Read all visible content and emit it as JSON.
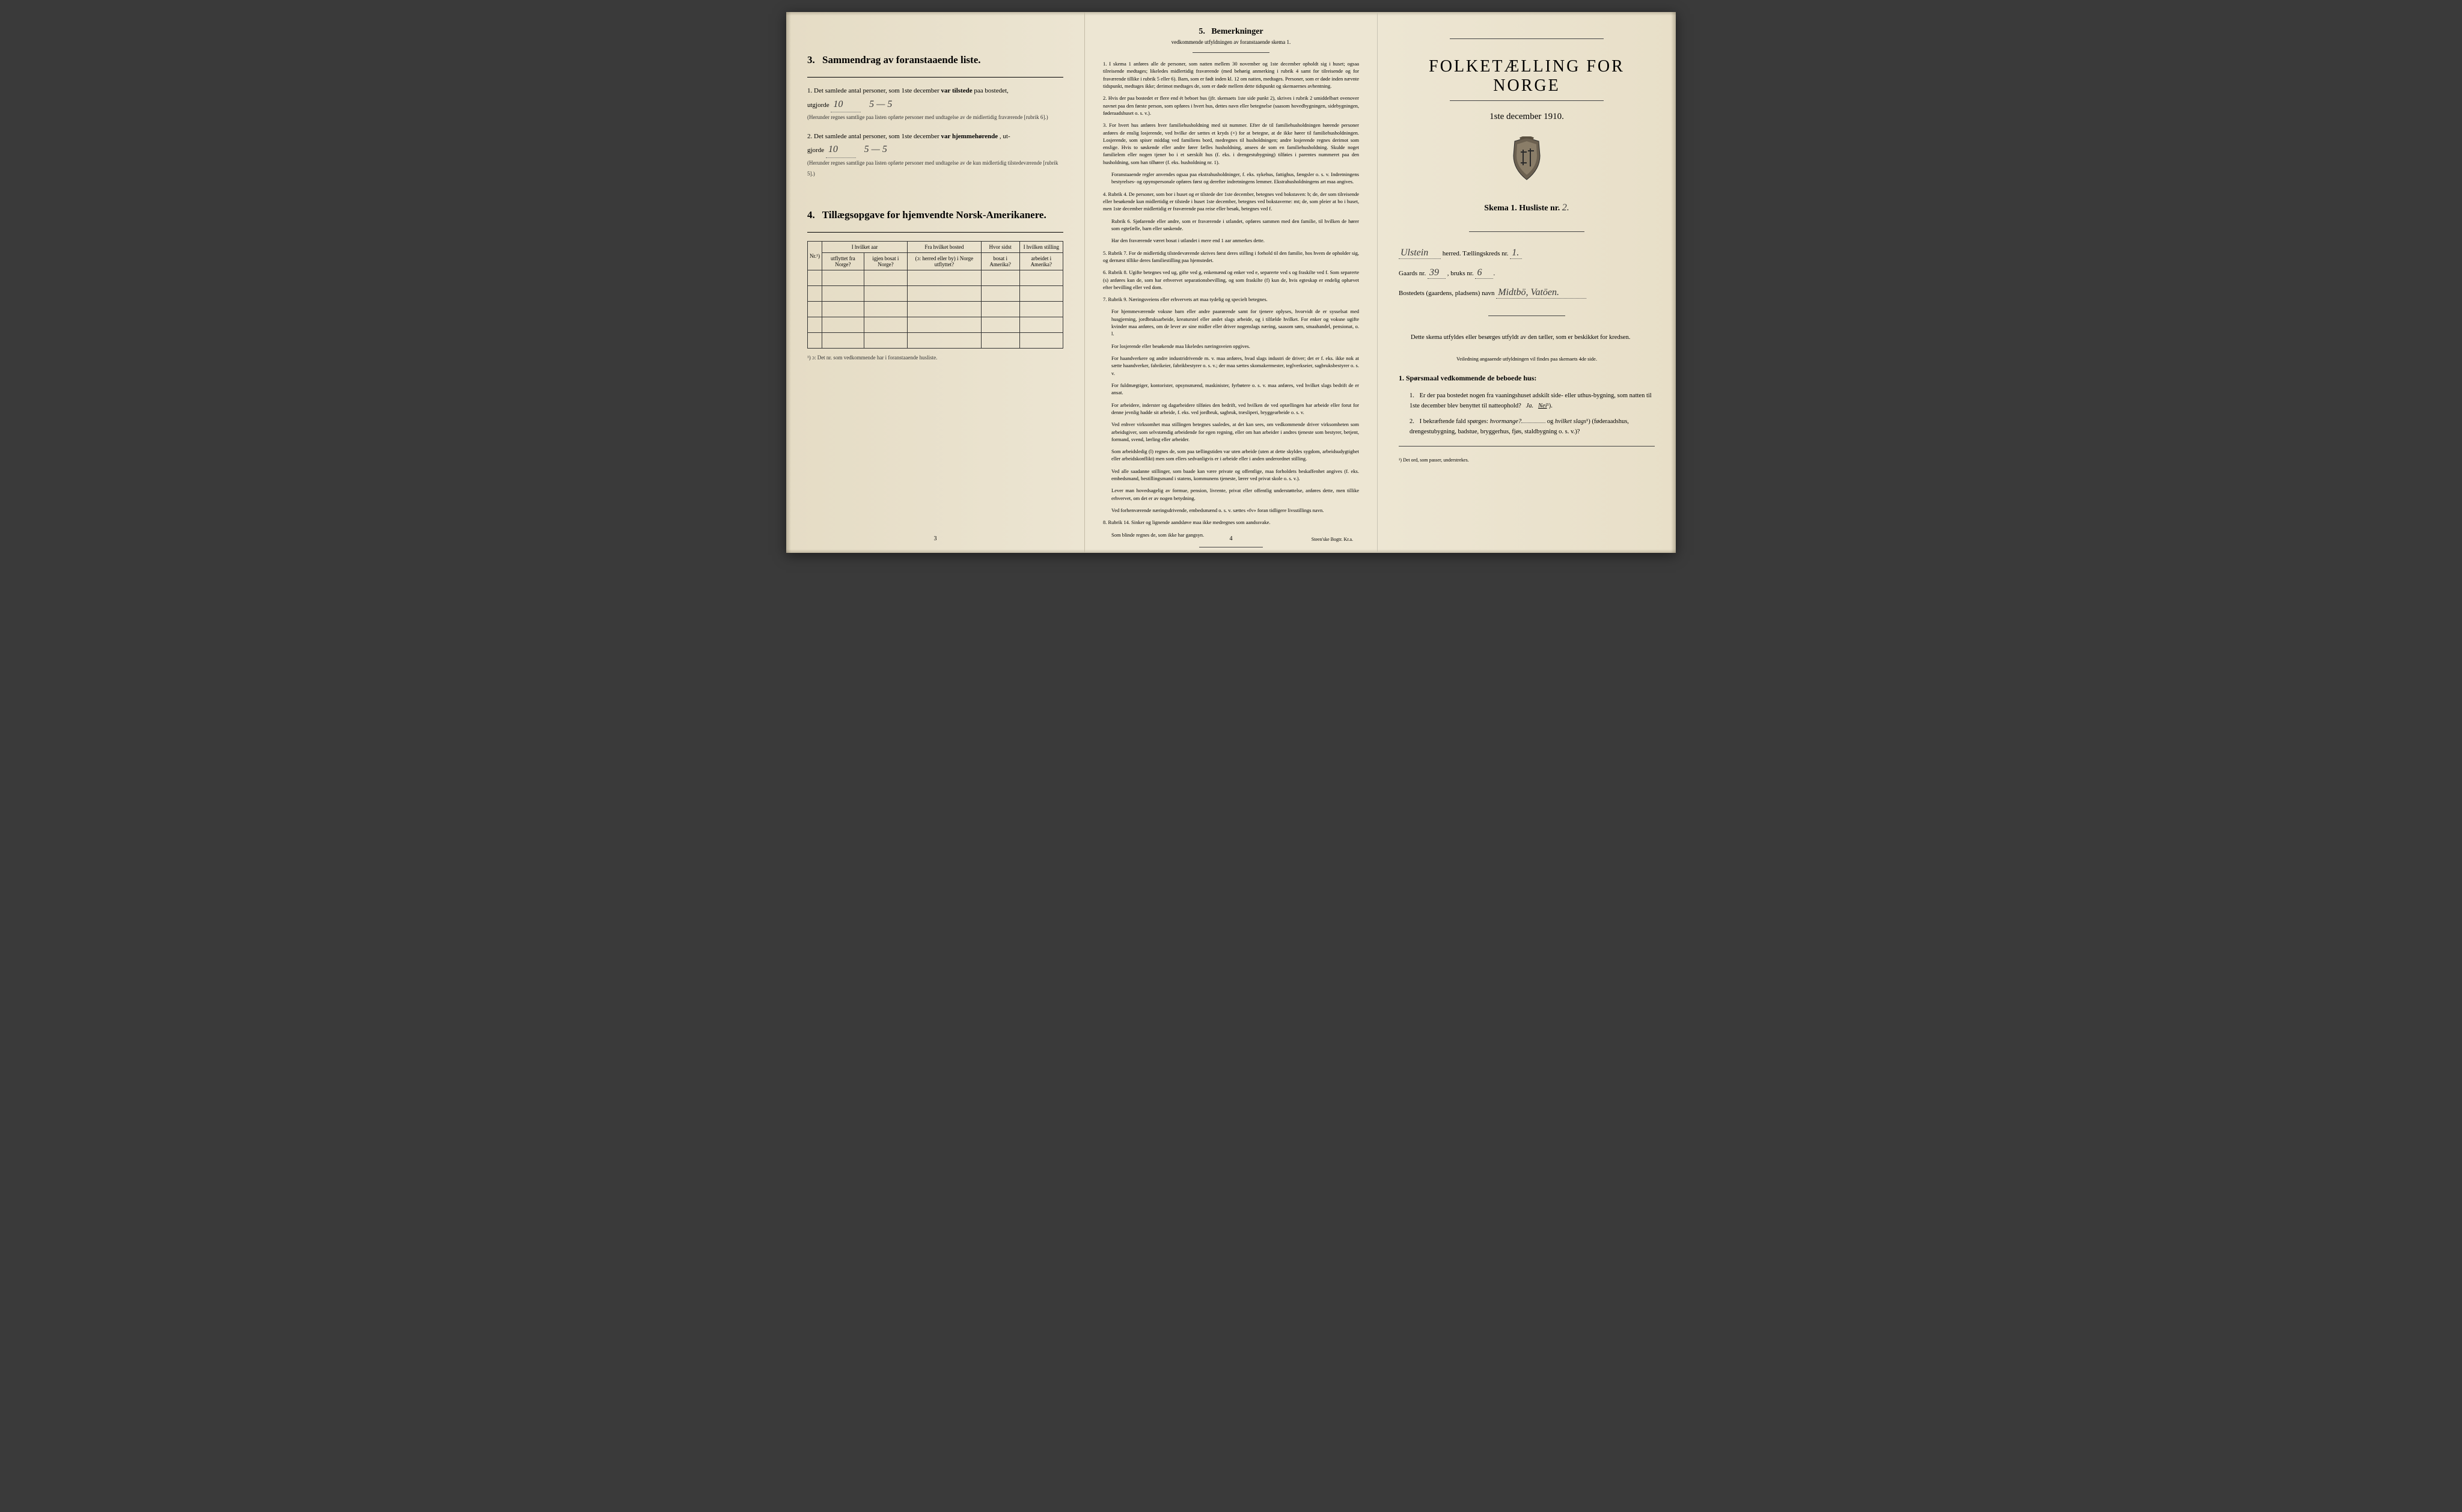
{
  "left": {
    "section3": {
      "number": "3.",
      "title": "Sammendrag av foranstaaende liste.",
      "item1_prefix": "1.  Det samlede antal personer, som 1ste december",
      "item1_bold": "var tilstede",
      "item1_suffix": "paa bostedet,",
      "utgjorde": "utgjorde",
      "value1": "10",
      "split1": "5 — 5",
      "note1": "(Herunder regnes samtlige paa listen opførte personer med undtagelse av de midlertidig fraværende [rubrik 6].)",
      "item2_prefix": "2.  Det samlede antal personer, som 1ste december",
      "item2_bold": "var hjemmehørende",
      "item2_suffix": ", ut-",
      "gjorde": "gjorde",
      "value2": "10",
      "split2": "5 — 5",
      "note2": "(Herunder regnes samtlige paa listen opførte personer med undtagelse av de kun midlertidig tilstedeværende [rubrik 5].)"
    },
    "section4": {
      "number": "4.",
      "title": "Tillægsopgave for hjemvendte Norsk-Amerikanere.",
      "cols": {
        "c1": "Nr.¹)",
        "c2a": "I hvilket aar",
        "c2b": "utflyttet fra Norge?",
        "c2c": "igjen bosat i Norge?",
        "c3a": "Fra hvilket bosted",
        "c3b": "(ɔ: herred eller by) i Norge utflyttet?",
        "c4a": "Hvor sidst",
        "c4b": "bosat i Amerika?",
        "c5a": "I hvilken stilling",
        "c5b": "arbeidet i Amerika?"
      },
      "footnote": "¹) ɔ: Det nr. som vedkommende har i foranstaaende husliste."
    },
    "pagenum": "3"
  },
  "middle": {
    "number": "5.",
    "title": "Bemerkninger",
    "subtitle": "vedkommende utfyldningen av foranstaaende skema 1.",
    "items": [
      "1.  I skema 1 anføres alle de personer, som natten mellem 30 november og 1ste december opholdt sig i huset; ogsaa tilreisende medtages; likeledes midlertidig fraværende (med behørig anmerking i rubrik 4 samt for tilreisende og for fraværende tillike i rubrik 5 eller 6). Barn, som er født inden kl. 12 om natten, medtages. Personer, som er døde inden nævnte tidspunkt, medtages ikke; derimot medtages de, som er døde mellem dette tidspunkt og skemaernes avhentning.",
      "2.  Hvis der paa bostedet er flere end ét beboet hus (jfr. skemaets 1ste side punkt 2), skrives i rubrik 2 umiddelbart ovenover navnet paa den første person, som opføres i hvert hus, dettes navn eller betegnelse (saasom hovedbygningen, sidebygningen, føderaadshuset o. s. v.).",
      "3.  For hvert hus anføres hver familiehusholdning med sit nummer. Efter de til familiehusholdningen hørende personer anføres de enslig losjerende, ved hvilke der sættes et kryds (×) for at betegne, at de ikke hører til familiehusholdningen. Losjerende, som spiser middag ved familiens bord, medregnes til husholdningen; andre losjerende regnes derimot som enslige. Hvis to søskende eller andre fører fælles husholdning, ansees de som en familiehusholdning. Skulde noget familielem eller nogen tjener bo i et særskilt hus (f. eks. i drengestubygning) tilføies i parentes nummeret paa den husholdning, som han tilhører (f. eks. husholdning nr. 1).",
      "Foranstaaende regler anvendes ogsaa paa ekstrahusholdninger, f. eks. sykehus, fattighus, fængsler o. s. v. Indretningens bestyrelses- og opynspersonale opføres først og derefter indretningens lemmer. Ekstrahusholdningens art maa angives.",
      "4.  Rubrik 4. De personer, som bor i huset og er tilstede der 1ste december, betegnes ved bokstaven: b; de, der som tilreisende eller besøkende kun midlertidig er tilstede i huset 1ste december, betegnes ved bokstaverne: mt; de, som pleier at bo i huset, men 1ste december midlertidig er fraværende paa reise eller besøk, betegnes ved f.",
      "Rubrik 6. Sjøfarende eller andre, som er fraværende i utlandet, opføres sammen med den familie, til hvilken de hører som egtefælle, barn eller søskende.",
      "Har den fraværende været bosat i utlandet i mere end 1 aar anmerkes dette.",
      "5.  Rubrik 7. For de midlertidig tilstedeværende skrives først deres stilling i forhold til den familie, hos hvem de opholder sig, og dernæst tillike deres familiestilling paa hjemstedet.",
      "6.  Rubrik 8. Ugifte betegnes ved ug, gifte ved g, enkemænd og enker ved e, separerte ved s og fraskilte ved f. Som separerte (s) anføres kun de, som har erhvervet separationsbevilling, og som fraskilte (f) kun de, hvis egteskap er endelig ophævet efter bevilling eller ved dom.",
      "7.  Rubrik 9. Næringsveiens eller erhvervets art maa tydelig og specielt betegnes.",
      "For hjemmeværende voksne barn eller andre paarørende samt for tjenere oplyses, hvorvidt de er sysselsat med husgjerning, jordbruksarbeide, kreaturstel eller andet slags arbeide, og i tilfælde hvilket. For enker og voksne ugifte kvinder maa anføres, om de lever av sine midler eller driver nogenslags næring, saasom søm, smaahandel, pensionat, o. l.",
      "For losjerende eller besøkende maa likeledes næringsveien opgives.",
      "For haandverkere og andre industridrivende m. v. maa anføres, hvad slags industri de driver; det er f. eks. ikke nok at sætte haandverker, fabrikeier, fabrikbestyrer o. s. v.; der maa sættes skomakermester, teglverkseier, sagbruksbestyrer o. s. v.",
      "For fuldmægtiger, kontorister, opsynsmænd, maskinister, fyrbøtere o. s. v. maa anføres, ved hvilket slags bedrift de er ansat.",
      "For arbeidere, inderster og dagarbeidere tilføies den bedrift, ved hvilken de ved optællingen har arbeide eller forut for denne jevnlig hadde sit arbeide, f. eks. ved jordbruk, sagbruk, træsliperi, bryggearbeide o. s. v.",
      "Ved enhver virksomhet maa stillingen betegnes saaledes, at det kan sees, om vedkommende driver virksomheten som arbeidsgiver, som selvstændig arbeidende for egen regning, eller om han arbeider i andres tjeneste som bestyrer, betjent, formand, svend, lærling eller arbeider.",
      "Som arbeidsledig (l) regnes de, som paa tællingstiden var uten arbeide (uten at dette skyldes sygdom, arbeidsudygtighet eller arbeidskonflikt) men som ellers sedvanligvis er i arbeide eller i anden underordnet stilling.",
      "Ved alle saadanne stillinger, som baade kan være private og offentlige, maa forholdets beskaffenhet angives (f. eks. embedsmand, bestillingsmand i statens, kommunens tjeneste, lærer ved privat skole o. s. v.).",
      "Lever man hovedsagelig av formue, pension, livrente, privat eller offentlig understøttelse, anføres dette, men tillike erhvervet, om det er av nogen betydning.",
      "Ved forhenværende næringsdrivende, embedsmænd o. s. v. sættes «fv» foran tidligere livsstillings navn.",
      "8.  Rubrik 14. Sinker og lignende aandsløve maa ikke medregnes som aandssvake.",
      "Som blinde regnes de, som ikke har gangsyn."
    ],
    "pagenum": "4",
    "printer": "Steen'ske Bogtr.  Kr.a."
  },
  "right": {
    "title": "FOLKETÆLLING FOR NORGE",
    "subtitle": "1ste december 1910.",
    "skema_label": "Skema 1.   Husliste nr.",
    "skema_value": "2.",
    "herred_value": "Ulstein",
    "herred_label": "herred.  Tællingskreds nr.",
    "kreds_value": "1.",
    "gaards_label": "Gaards nr.",
    "gaards_value": "39",
    "bruks_label": ", bruks nr.",
    "bruks_value": "6",
    "bosted_label": "Bostedets (gaardens, pladsens) navn",
    "bosted_value": "Midtbö, Vatöen.",
    "instruction": "Dette skema utfyldes eller besørges utfyldt av den tæller, som er beskikket for kredsen.",
    "instruction_small": "Veiledning angaaende utfyldningen vil findes paa skemaets 4de side.",
    "q_head": "1. Spørsmaal vedkommende de beboede hus:",
    "q1_num": "1.",
    "q1_text": "Er der paa bostedet nogen fra vaaningshuset adskilt side- eller uthus‑bygning, som natten til 1ste december blev benyttet til natteophold?",
    "q1_ja": "Ja.",
    "q1_nei": "Nei",
    "q1_sup": "¹).",
    "q2_num": "2.",
    "q2_text_a": "I bekræftende fald spørges:",
    "q2_em1": "hvormange?",
    "q2_text_b": "og",
    "q2_em2": "hvilket slags",
    "q2_sup": "¹)",
    "q2_text_c": "(føderaadshus, drengestubygning, badstue, bryggerhus, fjøs, staldbygning o. s. v.)?",
    "footnote": "¹) Det ord, som passer, understrekes."
  },
  "colors": {
    "paper": "#ebe4d0",
    "ink": "#1a1a1a",
    "handwriting": "#3a3a3a"
  }
}
